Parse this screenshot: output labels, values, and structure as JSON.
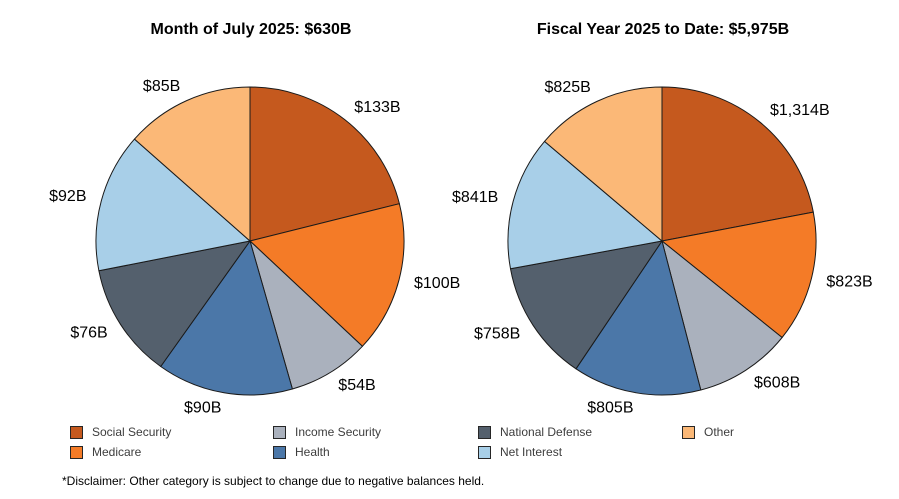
{
  "figure": {
    "disclaimer": "*Disclaimer: Other category is subject to change due to negative balances held."
  },
  "legend": {
    "items": [
      {
        "label": "Social Security",
        "color": "#C5591E"
      },
      {
        "label": "Medicare",
        "color": "#F47B27"
      },
      {
        "label": "Income Security",
        "color": "#AAB1BD"
      },
      {
        "label": "Health",
        "color": "#4B77A8"
      },
      {
        "label": "National Defense",
        "color": "#54606D"
      },
      {
        "label": "Net Interest",
        "color": "#A8CFE8"
      },
      {
        "label": "Other",
        "color": "#FBB877"
      }
    ]
  },
  "chart_data": [
    {
      "type": "pie",
      "title": "Month of July 2025: $630B",
      "total_label": "$630B",
      "categories": [
        "Social Security",
        "Medicare",
        "Income Security",
        "Health",
        "National Defense",
        "Net Interest",
        "Other"
      ],
      "values": [
        133,
        100,
        54,
        90,
        76,
        92,
        85
      ],
      "slice_labels": [
        "$133B",
        "$100B",
        "$54B",
        "$90B",
        "$76B",
        "$92B",
        "$85B"
      ],
      "colors": [
        "#C5591E",
        "#F47B27",
        "#AAB1BD",
        "#4B77A8",
        "#54606D",
        "#A8CFE8",
        "#FBB877"
      ],
      "start_angle": "12-oclock",
      "direction": "clockwise",
      "legend_position": "bottom"
    },
    {
      "type": "pie",
      "title": "Fiscal Year 2025 to Date: $5,975B",
      "total_label": "$5,975B",
      "categories": [
        "Social Security",
        "Medicare",
        "Income Security",
        "Health",
        "National Defense",
        "Net Interest",
        "Other"
      ],
      "values": [
        1314,
        823,
        608,
        805,
        758,
        841,
        825
      ],
      "slice_labels": [
        "$1,314B",
        "$823B",
        "$608B",
        "$805B",
        "$758B",
        "$841B",
        "$825B"
      ],
      "colors": [
        "#C5591E",
        "#F47B27",
        "#AAB1BD",
        "#4B77A8",
        "#54606D",
        "#A8CFE8",
        "#FBB877"
      ],
      "start_angle": "12-oclock",
      "direction": "clockwise",
      "legend_position": "bottom"
    }
  ]
}
